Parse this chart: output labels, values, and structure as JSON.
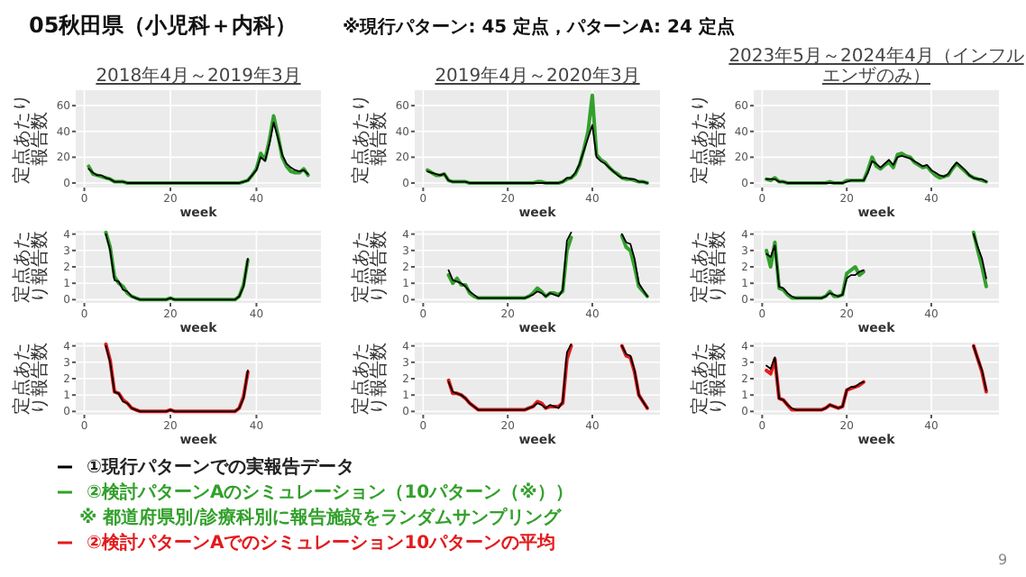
{
  "chart_data": [
    {
      "type": "line",
      "title": "2018年4月～2019年3月",
      "xlabel": "week",
      "ylabel": "定点あたり報告数",
      "grid": true,
      "legend": "bottom",
      "xlim": [
        -2,
        55
      ],
      "ylim": [
        -3.5,
        72
      ],
      "xticks": [
        0,
        20,
        40
      ],
      "yticks": [
        0,
        20,
        40,
        60
      ],
      "annotations": [
        "05秋田県（小児科＋内科）",
        "※現行パターン: 45 定点，パターンA: 24 定点",
        "※ 都道府県別/診療科別に報告施設をランダムサンプリング",
        "9"
      ],
      "x": [
        1,
        2,
        3,
        4,
        5,
        6,
        7,
        8,
        9,
        10,
        11,
        12,
        13,
        14,
        15,
        16,
        17,
        18,
        19,
        20,
        21,
        22,
        23,
        24,
        25,
        26,
        27,
        28,
        29,
        30,
        31,
        32,
        33,
        34,
        35,
        36,
        37,
        38,
        39,
        40,
        41,
        42,
        43,
        44,
        45,
        46,
        47,
        48,
        49,
        50,
        51,
        52
      ],
      "series": [
        {
          "name": "①現行パターンでの実報告データ",
          "color": "#000000",
          "values": [
            11,
            8,
            6,
            6,
            4,
            3,
            1,
            1,
            1,
            0,
            0,
            0,
            0,
            0,
            0,
            0,
            0,
            0,
            0,
            0,
            0,
            0,
            0,
            0,
            0,
            0,
            0,
            0,
            0,
            0,
            0,
            0,
            0,
            0,
            0,
            0,
            1,
            2,
            6,
            10,
            20,
            17,
            30,
            47,
            35,
            22,
            15,
            12,
            10,
            9,
            10,
            7
          ]
        },
        {
          "name": "②検討パターンAのシミュレーション（10パターン（※））",
          "color": "#33a02c",
          "values": [
            13,
            7,
            6,
            5,
            4,
            3,
            1,
            1,
            1,
            0,
            0,
            0,
            0,
            0,
            0,
            0,
            0,
            0,
            0,
            0,
            0,
            0,
            0,
            0,
            0,
            0,
            0,
            0,
            0,
            0,
            0,
            0,
            0,
            0,
            0,
            0,
            1,
            2,
            6,
            11,
            23,
            18,
            33,
            52,
            37,
            20,
            13,
            9,
            8,
            8,
            11,
            6
          ]
        }
      ]
    },
    {
      "type": "line",
      "title": "2019年4月～2020年3月",
      "xlabel": "week",
      "ylabel": "定点あたり報告数",
      "grid": true,
      "xlim": [
        -2,
        56
      ],
      "ylim": [
        -3.5,
        72
      ],
      "xticks": [
        0,
        20,
        40
      ],
      "yticks": [
        0,
        20,
        40,
        60
      ],
      "x": [
        1,
        2,
        3,
        4,
        5,
        6,
        7,
        8,
        9,
        10,
        11,
        12,
        13,
        14,
        15,
        16,
        17,
        18,
        19,
        20,
        21,
        22,
        23,
        24,
        25,
        26,
        27,
        28,
        29,
        30,
        31,
        32,
        33,
        34,
        35,
        36,
        37,
        38,
        39,
        40,
        41,
        42,
        43,
        44,
        45,
        46,
        47,
        48,
        49,
        50,
        51,
        52,
        53
      ],
      "series": [
        {
          "color": "#000000",
          "values": [
            9,
            8,
            7,
            6,
            7,
            2,
            1,
            1,
            1,
            1,
            0,
            0,
            0,
            0,
            0,
            0,
            0,
            0,
            0,
            0,
            0,
            0,
            0,
            0,
            0,
            0,
            0,
            0,
            0,
            0,
            0,
            0,
            1,
            4,
            4,
            8,
            15,
            25,
            35,
            45,
            20,
            17,
            15,
            12,
            9,
            6,
            4,
            4,
            3,
            3,
            1,
            1,
            0
          ]
        },
        {
          "color": "#33a02c",
          "values": [
            10,
            8,
            6,
            6,
            7,
            2,
            1,
            1,
            1,
            1,
            0,
            0,
            0,
            0,
            0,
            0,
            0,
            0,
            0,
            0,
            0,
            0,
            0,
            0,
            0,
            0,
            1,
            1,
            0,
            0,
            0,
            0,
            1,
            3,
            4,
            7,
            14,
            26,
            40,
            68,
            22,
            18,
            16,
            12,
            9,
            7,
            4,
            3,
            3,
            2,
            1,
            1,
            0
          ]
        }
      ]
    },
    {
      "type": "line",
      "title": "2023年5月～2024年4月（インフルエンザのみ）",
      "xlabel": "week",
      "ylabel": "定点あたり報告数",
      "grid": true,
      "xlim": [
        -2,
        56
      ],
      "ylim": [
        -3.5,
        72
      ],
      "xticks": [
        0,
        20,
        40
      ],
      "yticks": [
        0,
        20,
        40,
        60
      ],
      "x": [
        1,
        2,
        3,
        4,
        5,
        6,
        7,
        8,
        9,
        10,
        11,
        12,
        13,
        14,
        15,
        16,
        17,
        18,
        19,
        20,
        21,
        22,
        23,
        24,
        25,
        26,
        27,
        28,
        29,
        30,
        31,
        32,
        33,
        34,
        35,
        36,
        37,
        38,
        39,
        40,
        41,
        42,
        43,
        44,
        45,
        46,
        47,
        48,
        49,
        50,
        51,
        52,
        53
      ],
      "series": [
        {
          "color": "#000000",
          "values": [
            3,
            3,
            3,
            1,
            1,
            0,
            0,
            0,
            0,
            0,
            0,
            0,
            0,
            0,
            0,
            0,
            0,
            0,
            0,
            1,
            2,
            2,
            2,
            2,
            8,
            17,
            15,
            12,
            15,
            18,
            14,
            20,
            21,
            20,
            19,
            17,
            15,
            13,
            14,
            10,
            8,
            6,
            5,
            7,
            12,
            16,
            13,
            10,
            6,
            4,
            3,
            3,
            1
          ]
        },
        {
          "color": "#33a02c",
          "values": [
            3,
            2,
            4,
            1,
            1,
            0,
            0,
            0,
            0,
            0,
            0,
            0,
            0,
            0,
            0,
            1,
            0,
            0,
            0,
            2,
            2,
            2,
            2,
            2,
            10,
            20,
            13,
            11,
            14,
            16,
            12,
            22,
            23,
            21,
            20,
            16,
            14,
            12,
            13,
            9,
            6,
            4,
            5,
            6,
            11,
            15,
            12,
            9,
            6,
            4,
            3,
            2,
            1
          ]
        }
      ]
    },
    {
      "type": "line",
      "xlabel": "week",
      "ylabel": "定点あたり報告数",
      "grid": true,
      "xlim": [
        -2,
        55
      ],
      "ylim": [
        -0.2,
        4.2
      ],
      "xticks": [
        0,
        20,
        40
      ],
      "yticks": [
        0,
        1,
        2,
        3,
        4
      ],
      "x": [
        5,
        6,
        7,
        8,
        9,
        10,
        11,
        12,
        13,
        14,
        15,
        16,
        17,
        18,
        19,
        20,
        21,
        22,
        23,
        24,
        25,
        26,
        27,
        28,
        29,
        30,
        31,
        32,
        33,
        34,
        35,
        36,
        37,
        38
      ],
      "series": [
        {
          "color": "#000000",
          "values": [
            4,
            3,
            1.2,
            1.1,
            0.6,
            0.5,
            0.2,
            0.1,
            0,
            0,
            0,
            0,
            0,
            0,
            0,
            0.1,
            0,
            0,
            0,
            0,
            0,
            0,
            0,
            0,
            0,
            0,
            0,
            0,
            0,
            0,
            0,
            0.2,
            0.8,
            2.5
          ]
        },
        {
          "color": "#33a02c",
          "values": [
            4.1,
            3.2,
            1.4,
            1,
            0.8,
            0.4,
            0.2,
            0.1,
            0,
            0,
            0,
            0,
            0,
            0,
            0,
            0.1,
            0,
            0,
            0,
            0,
            0,
            0,
            0,
            0,
            0,
            0,
            0,
            0,
            0,
            0,
            0,
            0.2,
            0.9,
            2.4
          ]
        }
      ]
    },
    {
      "type": "line",
      "xlabel": "week",
      "ylabel": "定点あたり報告数",
      "grid": true,
      "xlim": [
        -2,
        56
      ],
      "ylim": [
        -0.2,
        4.2
      ],
      "xticks": [
        0,
        20,
        40
      ],
      "yticks": [
        0,
        1,
        2,
        3,
        4
      ],
      "series": [
        {
          "color": "#000000",
          "x": [
            6,
            7,
            8,
            9,
            10,
            11,
            12,
            13,
            14,
            15,
            16,
            17,
            18,
            19,
            20,
            21,
            22,
            23,
            24,
            25,
            26,
            27,
            28,
            29,
            30,
            31,
            32,
            33,
            34,
            35
          ],
          "values": [
            1.8,
            1.2,
            1.1,
            1,
            0.8,
            0.5,
            0.3,
            0.1,
            0.1,
            0.1,
            0.1,
            0.1,
            0.1,
            0.1,
            0.1,
            0.1,
            0.1,
            0.1,
            0.1,
            0.2,
            0.3,
            0.5,
            0.4,
            0.2,
            0.4,
            0.3,
            0.2,
            0.6,
            3.6,
            4.1
          ]
        },
        {
          "color": "#000000",
          "x": [
            47,
            48,
            49,
            50,
            51,
            52,
            53
          ],
          "values": [
            4,
            3.5,
            3.4,
            2.5,
            1,
            0.6,
            0.2
          ]
        },
        {
          "color": "#33a02c",
          "x": [
            6,
            7,
            8,
            9,
            10,
            11,
            12,
            13,
            14,
            15,
            16,
            17,
            18,
            19,
            20,
            21,
            22,
            23,
            24,
            25,
            26,
            27,
            28,
            29,
            30,
            31,
            32,
            33,
            34,
            35
          ],
          "values": [
            1.5,
            1,
            1.3,
            0.9,
            0.9,
            0.4,
            0.2,
            0.1,
            0.1,
            0.1,
            0.1,
            0.1,
            0.1,
            0.1,
            0.1,
            0.1,
            0.1,
            0.1,
            0.1,
            0.2,
            0.4,
            0.7,
            0.5,
            0.2,
            0.4,
            0.4,
            0.3,
            0.5,
            3,
            3.8
          ]
        },
        {
          "color": "#33a02c",
          "x": [
            47,
            48,
            49,
            50,
            51,
            52,
            53
          ],
          "values": [
            3.9,
            3.2,
            3,
            2,
            0.8,
            0.5,
            0.2
          ]
        }
      ]
    },
    {
      "type": "line",
      "xlabel": "week",
      "ylabel": "定点あたり報告数",
      "grid": true,
      "xlim": [
        -2,
        56
      ],
      "ylim": [
        -0.2,
        4.2
      ],
      "xticks": [
        0,
        20,
        40
      ],
      "yticks": [
        0,
        1,
        2,
        3,
        4
      ],
      "series": [
        {
          "color": "#000000",
          "x": [
            1,
            2,
            3,
            4,
            5,
            6,
            7,
            8,
            9,
            10,
            11,
            12,
            13,
            14,
            15,
            16,
            17,
            18,
            19,
            20,
            21,
            22,
            23,
            24
          ],
          "values": [
            2.8,
            2.6,
            3.3,
            0.8,
            0.7,
            0.4,
            0.2,
            0.1,
            0.1,
            0.1,
            0.1,
            0.1,
            0.1,
            0.1,
            0.2,
            0.4,
            0.3,
            0.2,
            0.3,
            1.3,
            1.5,
            1.5,
            1.7,
            1.8
          ]
        },
        {
          "color": "#000000",
          "x": [
            50,
            51,
            52,
            53
          ],
          "values": [
            4,
            3.2,
            2.5,
            1.3
          ]
        },
        {
          "color": "#33a02c",
          "x": [
            1,
            2,
            3,
            4,
            5,
            6,
            7,
            8,
            9,
            10,
            11,
            12,
            13,
            14,
            15,
            16,
            17,
            18,
            19,
            20,
            21,
            22,
            23,
            24
          ],
          "values": [
            3,
            2,
            3.5,
            0.7,
            0.6,
            0.3,
            0.1,
            0.1,
            0.1,
            0.1,
            0.1,
            0.1,
            0.1,
            0.1,
            0.2,
            0.5,
            0.2,
            0.2,
            0.3,
            1.6,
            1.8,
            2,
            1.5,
            1.7
          ]
        },
        {
          "color": "#33a02c",
          "x": [
            50,
            51,
            52,
            53
          ],
          "values": [
            4.1,
            3,
            2,
            0.8
          ]
        }
      ]
    },
    {
      "type": "line",
      "xlabel": "week",
      "ylabel": "定点あたり報告数",
      "grid": true,
      "legend": "bottom",
      "xlim": [
        -2,
        55
      ],
      "ylim": [
        -0.2,
        4.2
      ],
      "xticks": [
        0,
        20,
        40
      ],
      "yticks": [
        0,
        1,
        2,
        3,
        4
      ],
      "x": [
        5,
        6,
        7,
        8,
        9,
        10,
        11,
        12,
        13,
        14,
        15,
        16,
        17,
        18,
        19,
        20,
        21,
        22,
        23,
        24,
        25,
        26,
        27,
        28,
        29,
        30,
        31,
        32,
        33,
        34,
        35,
        36,
        37,
        38
      ],
      "series": [
        {
          "color": "#000000",
          "values": [
            4,
            3,
            1.2,
            1.1,
            0.6,
            0.5,
            0.2,
            0.1,
            0,
            0,
            0,
            0,
            0,
            0,
            0,
            0.1,
            0,
            0,
            0,
            0,
            0,
            0,
            0,
            0,
            0,
            0,
            0,
            0,
            0,
            0,
            0,
            0.2,
            0.8,
            2.5
          ]
        },
        {
          "name": "②検討パターンAでのシミュレーション10パターンの平均",
          "color": "#e31a1c",
          "values": [
            4.1,
            3.1,
            1.2,
            1.1,
            0.7,
            0.5,
            0.2,
            0.1,
            0,
            0,
            0,
            0,
            0,
            0,
            0,
            0.1,
            0,
            0,
            0,
            0,
            0,
            0,
            0,
            0,
            0,
            0,
            0,
            0,
            0,
            0,
            0,
            0.2,
            0.9,
            2.4
          ]
        }
      ]
    },
    {
      "type": "line",
      "xlabel": "week",
      "ylabel": "定点あたり報告数",
      "grid": true,
      "xlim": [
        -2,
        56
      ],
      "ylim": [
        -0.2,
        4.2
      ],
      "xticks": [
        0,
        20,
        40
      ],
      "yticks": [
        0,
        1,
        2,
        3,
        4
      ],
      "series": [
        {
          "color": "#000000",
          "x": [
            6,
            7,
            8,
            9,
            10,
            11,
            12,
            13,
            14,
            15,
            16,
            17,
            18,
            19,
            20,
            21,
            22,
            23,
            24,
            25,
            26,
            27,
            28,
            29,
            30,
            31,
            32,
            33,
            34,
            35
          ],
          "values": [
            1.8,
            1.2,
            1.1,
            1,
            0.8,
            0.5,
            0.3,
            0.1,
            0.1,
            0.1,
            0.1,
            0.1,
            0.1,
            0.1,
            0.1,
            0.1,
            0.1,
            0.1,
            0.1,
            0.2,
            0.3,
            0.5,
            0.4,
            0.2,
            0.4,
            0.3,
            0.2,
            0.6,
            3.6,
            4.1
          ]
        },
        {
          "color": "#000000",
          "x": [
            47,
            48,
            49,
            50,
            51,
            52,
            53
          ],
          "values": [
            4,
            3.5,
            3.4,
            2.5,
            1,
            0.6,
            0.2
          ]
        },
        {
          "color": "#e31a1c",
          "x": [
            6,
            7,
            8,
            9,
            10,
            11,
            12,
            13,
            14,
            15,
            16,
            17,
            18,
            19,
            20,
            21,
            22,
            23,
            24,
            25,
            26,
            27,
            28,
            29,
            30,
            31,
            32,
            33,
            34,
            35
          ],
          "values": [
            1.9,
            1.1,
            1.1,
            1,
            0.8,
            0.5,
            0.3,
            0.1,
            0.1,
            0.1,
            0.1,
            0.1,
            0.1,
            0.1,
            0.1,
            0.1,
            0.1,
            0.1,
            0.1,
            0.2,
            0.3,
            0.6,
            0.5,
            0.2,
            0.3,
            0.3,
            0.3,
            0.5,
            3.2,
            4
          ]
        },
        {
          "color": "#e31a1c",
          "x": [
            47,
            48,
            49,
            50,
            51,
            52,
            53
          ],
          "values": [
            4,
            3.4,
            3.3,
            2.4,
            1,
            0.6,
            0.2
          ]
        }
      ]
    },
    {
      "type": "line",
      "xlabel": "week",
      "ylabel": "定点あたり報告数",
      "grid": true,
      "xlim": [
        -2,
        56
      ],
      "ylim": [
        -0.2,
        4.2
      ],
      "xticks": [
        0,
        20,
        40
      ],
      "yticks": [
        0,
        1,
        2,
        3,
        4
      ],
      "series": [
        {
          "color": "#000000",
          "x": [
            1,
            2,
            3,
            4,
            5,
            6,
            7,
            8,
            9,
            10,
            11,
            12,
            13,
            14,
            15,
            16,
            17,
            18,
            19,
            20,
            21,
            22,
            23,
            24
          ],
          "values": [
            2.8,
            2.6,
            3.3,
            0.8,
            0.7,
            0.4,
            0.2,
            0.1,
            0.1,
            0.1,
            0.1,
            0.1,
            0.1,
            0.1,
            0.2,
            0.4,
            0.3,
            0.2,
            0.3,
            1.3,
            1.5,
            1.5,
            1.7,
            1.8
          ]
        },
        {
          "color": "#000000",
          "x": [
            50,
            51,
            52,
            53
          ],
          "values": [
            4,
            3.2,
            2.5,
            1.3
          ]
        },
        {
          "color": "#e31a1c",
          "x": [
            1,
            2,
            3,
            4,
            5,
            6,
            7,
            8,
            9,
            10,
            11,
            12,
            13,
            14,
            15,
            16,
            17,
            18,
            19,
            20,
            21,
            22,
            23,
            24
          ],
          "values": [
            2.5,
            2.3,
            3.2,
            0.8,
            0.7,
            0.4,
            0.1,
            0.1,
            0.1,
            0.1,
            0.1,
            0.1,
            0.1,
            0.1,
            0.2,
            0.4,
            0.3,
            0.2,
            0.3,
            1.3,
            1.4,
            1.5,
            1.6,
            1.8
          ]
        },
        {
          "color": "#e31a1c",
          "x": [
            50,
            51,
            52,
            53
          ],
          "values": [
            4,
            3.2,
            2.4,
            1.2
          ]
        }
      ]
    }
  ]
}
